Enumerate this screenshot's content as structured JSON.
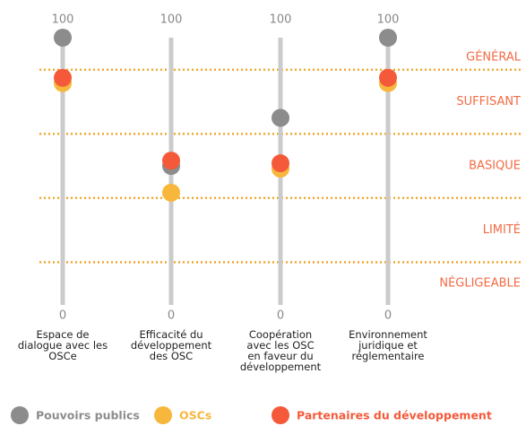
{
  "chart_data": {
    "type": "dot",
    "categories": [
      "Espace de\ndialogue avec les\nOSCe",
      "Efficacité du\ndéveloppement\ndes OSC",
      "Coopération\navec les OSC\nen faveur du\ndéveloppement",
      "Environnement\njuridique et\nréglementaire"
    ],
    "ylim": [
      0,
      100
    ],
    "yticks": [
      0,
      100
    ],
    "bands": [
      "GÉNÉRAL",
      "SUFFISANT",
      "BASIQUE",
      "LIMITÉ",
      "NÉGLIGEABLE"
    ],
    "band_thresholds": [
      88,
      64,
      40,
      16
    ],
    "band_color": "#f26b43",
    "threshold_color": "#f0a830",
    "series": [
      {
        "name": "Pouvoirs publics",
        "color": "#8c8c8c",
        "values": [
          100,
          52,
          70,
          100
        ]
      },
      {
        "name": "OSCs",
        "color": "#f6b73c",
        "values": [
          83,
          42,
          51,
          83
        ]
      },
      {
        "name": "Partenaires du développement",
        "color": "#f45a3a",
        "values": [
          85,
          54,
          53,
          85
        ]
      }
    ]
  }
}
